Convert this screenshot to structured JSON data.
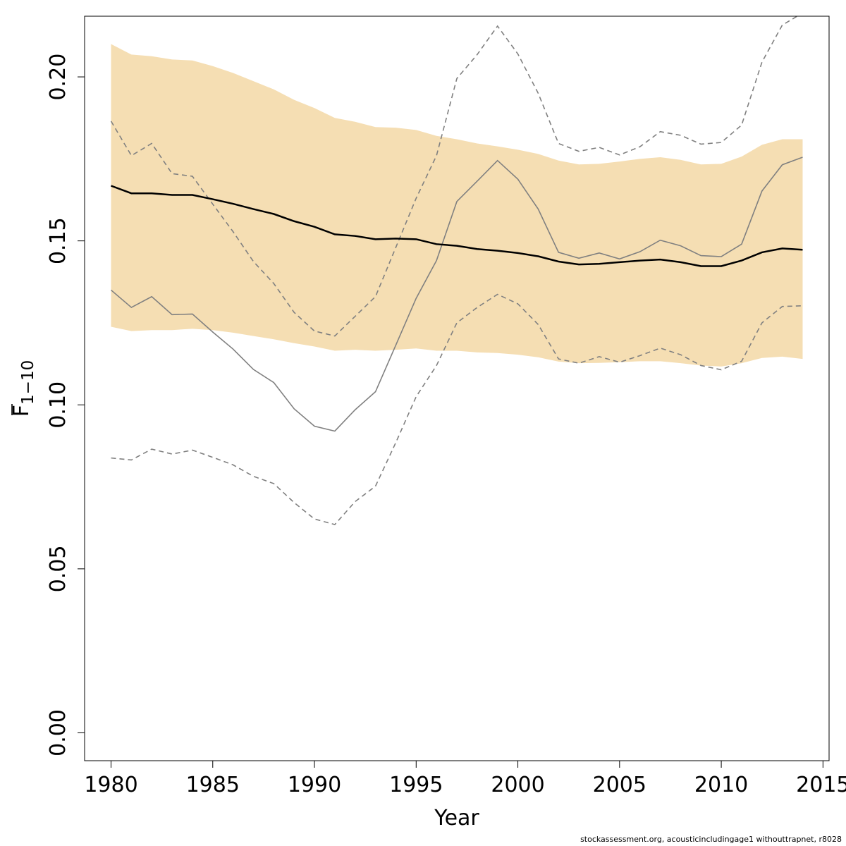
{
  "chart_data": {
    "type": "line",
    "xlabel": "Year",
    "ylabel": {
      "base": "F",
      "subscript": "1−10"
    },
    "xlim": [
      1978.7,
      2015.3
    ],
    "ylim": [
      -0.0085,
      0.2185
    ],
    "x_ticks": [
      1980,
      1985,
      1990,
      1995,
      2000,
      2005,
      2010,
      2015
    ],
    "y_ticks": [
      0.0,
      0.05,
      0.1,
      0.15,
      0.2
    ],
    "y_tick_labels": [
      "0.00",
      "0.05",
      "0.10",
      "0.15",
      "0.20"
    ],
    "grid": false,
    "colors": {
      "band": "#f5deb3",
      "mean": "#000000",
      "series": "#808080",
      "series_ci": "#808080"
    },
    "x": [
      1980,
      1981,
      1982,
      1983,
      1984,
      1985,
      1986,
      1987,
      1988,
      1989,
      1990,
      1991,
      1992,
      1993,
      1994,
      1995,
      1996,
      1997,
      1998,
      1999,
      2000,
      2001,
      2002,
      2003,
      2004,
      2005,
      2006,
      2007,
      2008,
      2009,
      2010,
      2011,
      2012,
      2013,
      2014
    ],
    "series": [
      {
        "style": "band",
        "upper": [
          0.21,
          0.2068,
          0.2063,
          0.2053,
          0.205,
          0.2033,
          0.2012,
          0.1987,
          0.1962,
          0.193,
          0.1905,
          0.1875,
          0.1863,
          0.1847,
          0.1845,
          0.1838,
          0.182,
          0.181,
          0.1797,
          0.1788,
          0.1778,
          0.1765,
          0.1745,
          0.1733,
          0.1735,
          0.1742,
          0.175,
          0.1755,
          0.1747,
          0.1733,
          0.1735,
          0.1757,
          0.1793,
          0.181,
          0.181
        ],
        "lower": [
          0.1238,
          0.1225,
          0.1228,
          0.1228,
          0.1232,
          0.1228,
          0.122,
          0.121,
          0.12,
          0.1188,
          0.1178,
          0.1165,
          0.1168,
          0.1165,
          0.1168,
          0.1172,
          0.1165,
          0.1165,
          0.116,
          0.1158,
          0.1153,
          0.1145,
          0.1132,
          0.1127,
          0.1128,
          0.113,
          0.1133,
          0.1133,
          0.1127,
          0.112,
          0.1117,
          0.1127,
          0.1143,
          0.1147,
          0.114
        ]
      },
      {
        "style": "mean",
        "values": [
          0.1668,
          0.1645,
          0.1645,
          0.164,
          0.164,
          0.1627,
          0.1613,
          0.1597,
          0.1582,
          0.156,
          0.1543,
          0.152,
          0.1515,
          0.1505,
          0.1507,
          0.1505,
          0.149,
          0.1485,
          0.1475,
          0.147,
          0.1463,
          0.1453,
          0.1437,
          0.1428,
          0.143,
          0.1435,
          0.144,
          0.1443,
          0.1435,
          0.1423,
          0.1423,
          0.144,
          0.1465,
          0.1477,
          0.1473
        ]
      },
      {
        "style": "series",
        "values": [
          0.135,
          0.1297,
          0.133,
          0.1275,
          0.1277,
          0.1222,
          0.117,
          0.1108,
          0.1068,
          0.0988,
          0.0935,
          0.092,
          0.0985,
          0.104,
          0.1182,
          0.1325,
          0.144,
          0.162,
          0.1682,
          0.1745,
          0.1688,
          0.1597,
          0.1465,
          0.1447,
          0.1463,
          0.1445,
          0.1467,
          0.1502,
          0.1485,
          0.1455,
          0.1452,
          0.149,
          0.1652,
          0.1732,
          0.1755
        ]
      },
      {
        "style": "series_ci",
        "values": [
          0.1865,
          0.176,
          0.1797,
          0.1705,
          0.1697,
          0.1612,
          0.1528,
          0.1437,
          0.137,
          0.1282,
          0.1225,
          0.121,
          0.127,
          0.133,
          0.148,
          0.163,
          0.176,
          0.1995,
          0.2068,
          0.2155,
          0.207,
          0.195,
          0.1797,
          0.1773,
          0.1785,
          0.1762,
          0.1787,
          0.1833,
          0.1822,
          0.1795,
          0.18,
          0.1853,
          0.2045,
          0.2158,
          0.2195
        ]
      },
      {
        "style": "series_ci",
        "values": [
          0.0838,
          0.0832,
          0.0865,
          0.085,
          0.0862,
          0.084,
          0.0817,
          0.0782,
          0.076,
          0.0702,
          0.0652,
          0.0635,
          0.0705,
          0.0752,
          0.0885,
          0.1025,
          0.112,
          0.125,
          0.1297,
          0.1337,
          0.1308,
          0.1245,
          0.114,
          0.1127,
          0.1147,
          0.113,
          0.115,
          0.1173,
          0.1153,
          0.112,
          0.1107,
          0.1133,
          0.125,
          0.13,
          0.1302
        ]
      }
    ]
  },
  "footer": {
    "text": "stockassessment.org, acousticincludingage1 withouttrapnet, r8028"
  }
}
